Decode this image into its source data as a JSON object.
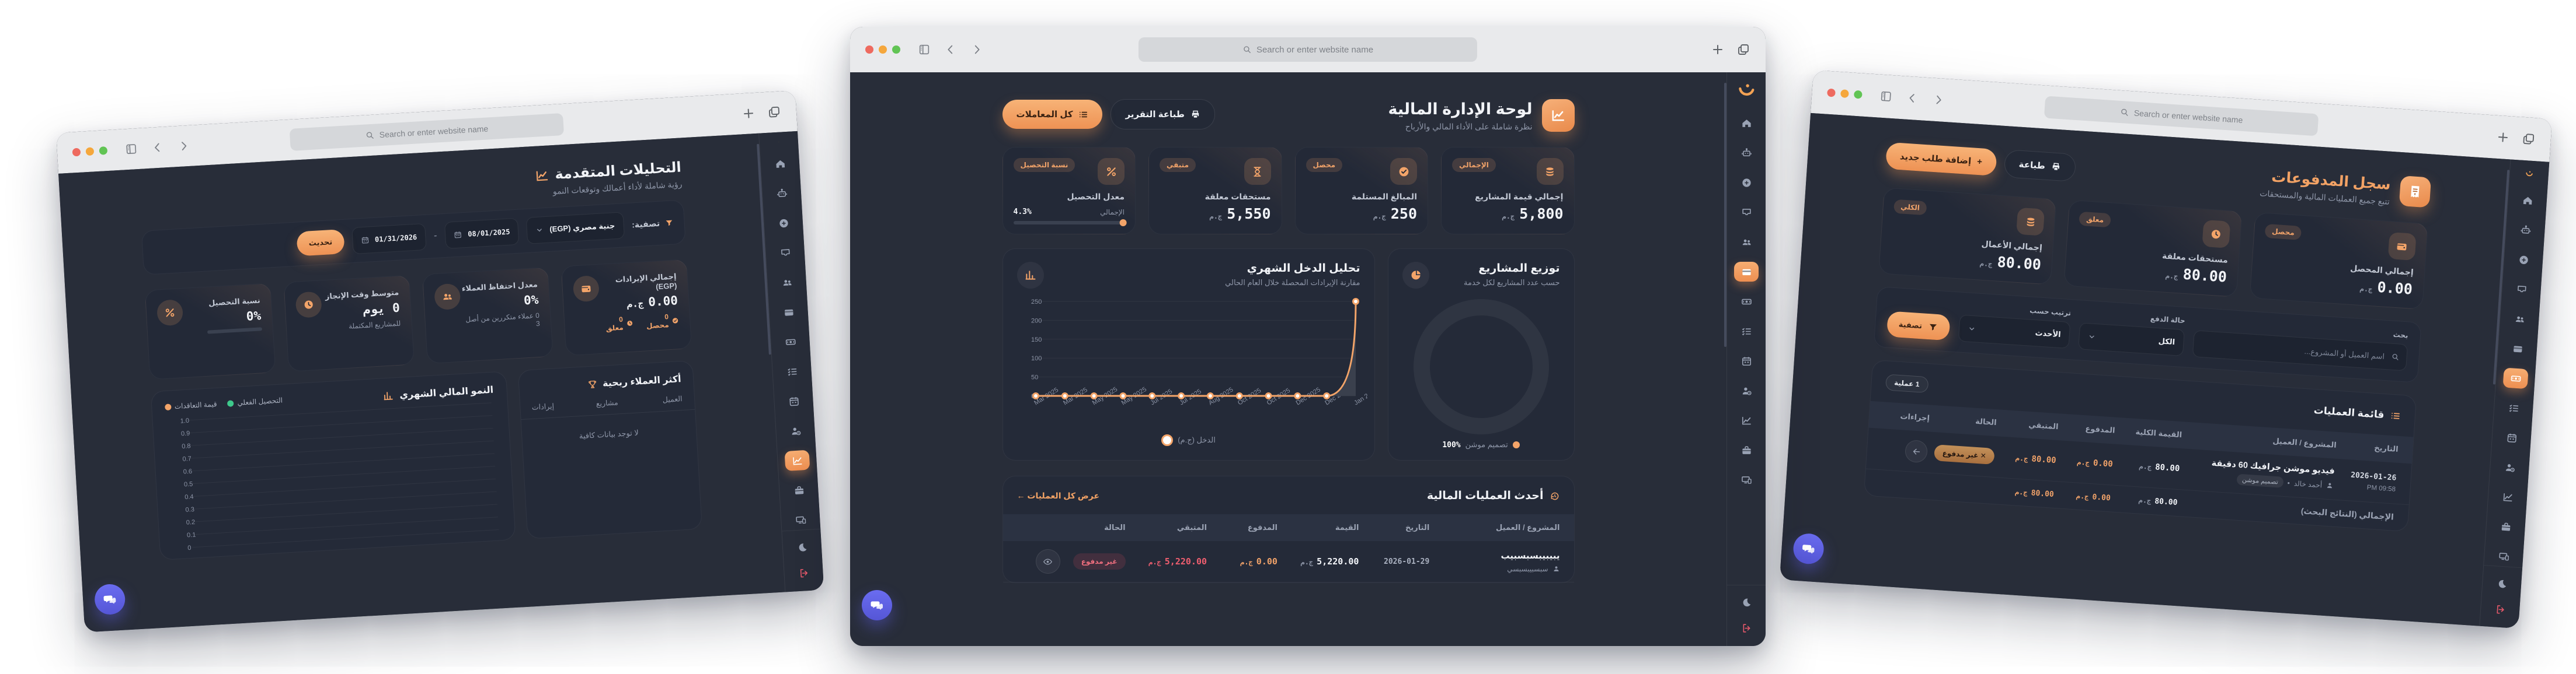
{
  "chrome": {
    "search_placeholder": "Search or enter website name"
  },
  "sidebar": {
    "items": [
      {
        "icon": "home"
      },
      {
        "icon": "robot"
      },
      {
        "icon": "plus-circle"
      },
      {
        "icon": "inbox"
      },
      {
        "icon": "users"
      },
      {
        "icon": "credit-card"
      },
      {
        "icon": "banknote"
      },
      {
        "icon": "task-list"
      },
      {
        "icon": "calendar"
      },
      {
        "icon": "user-clock"
      },
      {
        "icon": "chart-line"
      },
      {
        "icon": "briefcase"
      },
      {
        "icon": "devices"
      }
    ],
    "footer": [
      {
        "icon": "moon"
      },
      {
        "icon": "logout"
      }
    ]
  },
  "windows": {
    "center": {
      "active_nav": "credit-card",
      "header": {
        "title": "لوحة الإدارة المالية",
        "subtitle": "نظرة شاملة على الأداء المالي والأرباح"
      },
      "actions": {
        "print": "طباعة التقرير",
        "all_transactions": "كل المعاملات"
      },
      "stats": [
        {
          "badge": "الإجمالي",
          "label": "إجمالي قيمة المشاريع",
          "value": "5,800",
          "currency": "ج.م"
        },
        {
          "badge": "محصل",
          "label": "المبالغ المستلمة",
          "value": "250",
          "currency": "ج.م"
        },
        {
          "badge": "متبقي",
          "label": "مستحقات معلقة",
          "value": "5,550",
          "currency": "ج.م"
        },
        {
          "badge": "نسبة التحصيل",
          "label": "معدل التحصيل",
          "total_label": "الإجمالي",
          "percent": "4.3%"
        }
      ],
      "table": {
        "title": "أحدث العمليات المالية",
        "link": "عرض كل العمليات ←",
        "columns": [
          "المشروع / العميل",
          "التاريخ",
          "القيمة",
          "المدفوع",
          "المتبقي",
          "الحالة"
        ],
        "row": {
          "project": "يبيبيبسبسبيب",
          "client": "سبسبيبسبسي",
          "date": "2026-01-29",
          "value": "5,220.00",
          "paid": "0.00",
          "remaining": "5,220.00",
          "currency": "ج.م",
          "status": "غير مدفوع"
        }
      }
    },
    "left": {
      "active_nav": "chart-line",
      "header": {
        "title": "التحليلات المتقدمة",
        "subtitle": "رؤية شاملة لأداء أعمالك وتوقعات النمو"
      },
      "filter": {
        "label": "تصفية:",
        "currency": "جنية مصري (EGP)",
        "date_from": "08/01/2025",
        "separator": "-",
        "date_to": "01/31/2026",
        "button": "تحديث"
      },
      "stats": [
        {
          "label": "إجمالي الإيرادات (EGP)",
          "value": "0.00",
          "currency": "ج.م",
          "sub_collected": "0 محصل",
          "sub_pending": "0 معلق"
        },
        {
          "label": "معدل احتفاظ العملاء",
          "value": "0%",
          "sub": "0 عملاء متكررين من أصل 3"
        },
        {
          "label": "متوسط وقت الإنجاز",
          "value": "0 يوم",
          "sub": "للمشاريع المكتملة"
        },
        {
          "label": "نسبة التحصيل",
          "value": "0%"
        }
      ],
      "leaderboard": {
        "title": "أكثر العملاء ربحية",
        "columns": [
          "العميل",
          "مشاريع",
          "إيرادات"
        ],
        "empty": "لا توجد بيانات كافية"
      }
    },
    "right": {
      "active_nav": "banknote",
      "header": {
        "title": "سجل المدفوعات",
        "subtitle": "تتبع جميع العمليات المالية والمستحقات"
      },
      "actions": {
        "print": "طباعة",
        "add": "إضافة طلب جديد",
        "add_plus": "+"
      },
      "stats": [
        {
          "badge": "محصل",
          "label": "إجمالي المحصل",
          "value": "0.00",
          "currency": "ج.م"
        },
        {
          "badge": "معلق",
          "label": "مستحقات معلقة",
          "value": "80.00",
          "currency": "ج.م"
        },
        {
          "badge": "الكلي",
          "label": "إجمالي الأعمال",
          "value": "80.00",
          "currency": "ج.م"
        }
      ],
      "filter": {
        "search_label": "بحث",
        "search_placeholder": "اسم العميل أو المشروع...",
        "status_label": "حالة الدفع",
        "status_value": "الكل",
        "sort_label": "ترتيب حسب",
        "sort_value": "الأحدث",
        "button": "تصفية"
      },
      "table": {
        "title": "قائمة العمليات",
        "count_badge": "1 عملية",
        "columns": [
          "التاريخ",
          "المشروع / العميل",
          "القيمة الكلية",
          "المدفوع",
          "المتبقي",
          "الحالة",
          "إجراءات"
        ],
        "row": {
          "date": "2026-01-26",
          "time": "PM 09:58",
          "project": "فيديو موشن جرافيك 60 دقيقة",
          "client": "أحمد خالد",
          "category": "تصميم موشن",
          "total": "80.00",
          "paid": "0.00",
          "remaining": "80.00",
          "currency": "ج.م",
          "status": "✕ غير مدفوع"
        },
        "footer": {
          "label": "الإجمالي (النتائج البحث)",
          "total": "80.00",
          "paid": "0.00",
          "remaining": "80.00"
        }
      }
    }
  },
  "chart_data": [
    {
      "id": "monthly-income-analysis",
      "type": "area",
      "title": "تحليل الدخل الشهري",
      "subtitle": "مقارنة الإيرادات المحصلة خلال العام الحالي",
      "x": [
        "Mar 2025",
        "Mar 2025",
        "May 2025",
        "May 2025",
        "Jul 2025",
        "Jul 2025",
        "Aug 2025",
        "Oct 2025",
        "Oct 2025",
        "Dec 2025",
        "Dec 2025",
        "Jan 2026"
      ],
      "values": [
        0,
        0,
        0,
        0,
        0,
        0,
        0,
        0,
        0,
        0,
        0,
        250
      ],
      "ylim": [
        0,
        250
      ],
      "yticks": [
        0,
        50,
        100,
        150,
        200,
        250
      ],
      "legend": [
        "الدخل (ج.م)"
      ],
      "line_color": "#f3a469",
      "area_color": "#3a404d",
      "grid": true,
      "legend_position": "bottom"
    },
    {
      "id": "project-distribution",
      "type": "donut",
      "title": "توزيع المشاريع",
      "subtitle": "حسب عدد المشاريع لكل خدمة",
      "slices": [
        {
          "label": "تصميم موشن",
          "value": 100,
          "display": "100%",
          "color": "#f3a469"
        }
      ]
    },
    {
      "id": "monthly-financial-growth",
      "type": "line",
      "title": "النمو المالي الشهري",
      "series": [
        {
          "name": "التحصيل الفعلي",
          "color": "#3ec98c",
          "values": []
        },
        {
          "name": "قيمة التعاقدات",
          "color": "#f3a469",
          "values": []
        }
      ],
      "yticks": [
        "1.0",
        "0.9",
        "0.8",
        "0.7",
        "0.6",
        "0.5",
        "0.4",
        "0.3",
        "0.2",
        "0.1",
        "0"
      ],
      "ylim": [
        0,
        1
      ],
      "grid": true,
      "legend_position": "top-right",
      "empty": true
    }
  ]
}
